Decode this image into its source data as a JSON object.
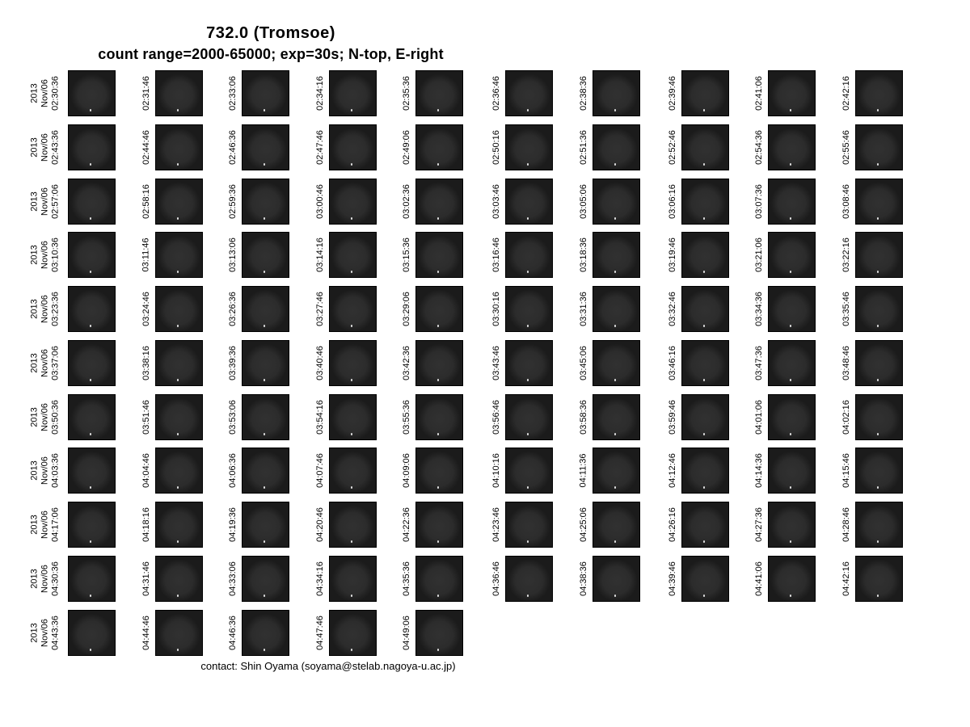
{
  "header": {
    "title": "732.0 (Tromsoe)",
    "subtitle": "count range=2000-65000; exp=30s; N-top, E-right"
  },
  "footer": {
    "contact": "contact: Shin Oyama (soyama@stelab.nagoya-u.ac.jp)"
  },
  "grid": {
    "date_year": "2013",
    "date_month_day": "Nov/06",
    "rows": [
      {
        "times": [
          "02:30:36",
          "02:31:46",
          "02:33:06",
          "02:34:16",
          "02:35:36",
          "02:36:46",
          "02:38:36",
          "02:39:46",
          "02:41:06",
          "02:42:16"
        ]
      },
      {
        "times": [
          "02:43:36",
          "02:44:46",
          "02:46:36",
          "02:47:46",
          "02:49:06",
          "02:50:16",
          "02:51:36",
          "02:52:46",
          "02:54:36",
          "02:55:46"
        ]
      },
      {
        "times": [
          "02:57:06",
          "02:58:16",
          "02:59:36",
          "03:00:46",
          "03:02:36",
          "03:03:46",
          "03:05:06",
          "03:06:16",
          "03:07:36",
          "03:08:46"
        ]
      },
      {
        "times": [
          "03:10:36",
          "03:11:46",
          "03:13:06",
          "03:14:16",
          "03:15:36",
          "03:16:46",
          "03:18:36",
          "03:19:46",
          "03:21:06",
          "03:22:16"
        ]
      },
      {
        "times": [
          "03:23:36",
          "03:24:46",
          "03:26:36",
          "03:27:46",
          "03:29:06",
          "03:30:16",
          "03:31:36",
          "03:32:46",
          "03:34:36",
          "03:35:46"
        ]
      },
      {
        "times": [
          "03:37:06",
          "03:38:16",
          "03:39:36",
          "03:40:46",
          "03:42:36",
          "03:43:46",
          "03:45:06",
          "03:46:16",
          "03:47:36",
          "03:48:46"
        ]
      },
      {
        "times": [
          "03:50:36",
          "03:51:46",
          "03:53:06",
          "03:54:16",
          "03:55:36",
          "03:56:46",
          "03:58:36",
          "03:59:46",
          "04:01:06",
          "04:02:16"
        ]
      },
      {
        "times": [
          "04:03:36",
          "04:04:46",
          "04:06:36",
          "04:07:46",
          "04:09:06",
          "04:10:16",
          "04:11:36",
          "04:12:46",
          "04:14:36",
          "04:15:46"
        ]
      },
      {
        "times": [
          "04:17:06",
          "04:18:16",
          "04:19:36",
          "04:20:46",
          "04:22:36",
          "04:23:46",
          "04:25:06",
          "04:26:16",
          "04:27:36",
          "04:28:46"
        ]
      },
      {
        "times": [
          "04:30:36",
          "04:31:46",
          "04:33:06",
          "04:34:16",
          "04:35:36",
          "04:36:46",
          "04:38:36",
          "04:39:46",
          "04:41:06",
          "04:42:16"
        ]
      },
      {
        "times": [
          "04:43:36",
          "04:44:46",
          "04:46:36",
          "04:47:46",
          "04:49:06"
        ]
      }
    ]
  },
  "colors": {
    "background": "#ffffff",
    "tile_background": "#1b1b1b",
    "sky_disc": "#2e2e2e",
    "star_dot": "#e0e0e0",
    "text": "#000000"
  }
}
